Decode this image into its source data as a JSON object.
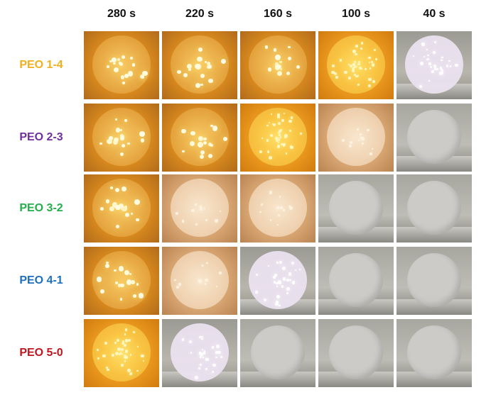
{
  "columns": [
    "280 s",
    "220 s",
    "160 s",
    "100 s",
    "40 s"
  ],
  "rows": [
    {
      "label": "PEO 1-4",
      "color": "#f2b01e",
      "states": [
        "sparks",
        "sparks",
        "sparks",
        "burning",
        "white"
      ]
    },
    {
      "label": "PEO 2-3",
      "color": "#7030a0",
      "states": [
        "sparks",
        "sparks",
        "burning",
        "glow",
        "gray"
      ]
    },
    {
      "label": "PEO 3-2",
      "color": "#22b04b",
      "states": [
        "sparks",
        "glow",
        "glow",
        "gray",
        "gray"
      ]
    },
    {
      "label": "PEO 4-1",
      "color": "#1f6fbf",
      "states": [
        "sparks",
        "glow",
        "white",
        "gray",
        "gray"
      ]
    },
    {
      "label": "PEO 5-0",
      "color": "#c0161e",
      "states": [
        "burning",
        "white",
        "gray",
        "gray",
        "gray"
      ]
    }
  ]
}
